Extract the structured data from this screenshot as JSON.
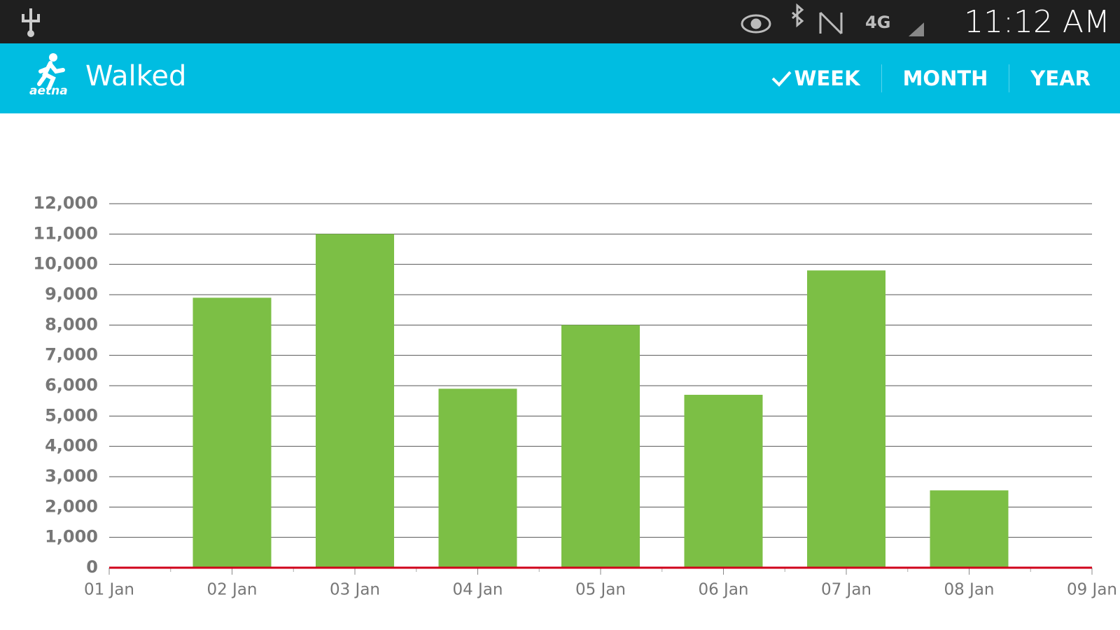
{
  "status_bar": {
    "time": "11:12 AM"
  },
  "app_bar": {
    "logo": "aetna",
    "title": "Walked",
    "tabs": [
      {
        "label": "WEEK",
        "selected": true
      },
      {
        "label": "MONTH",
        "selected": false
      },
      {
        "label": "YEAR",
        "selected": false
      }
    ]
  },
  "chart_data": {
    "type": "bar",
    "categories": [
      "01 Jan",
      "02 Jan",
      "03 Jan",
      "04 Jan",
      "05 Jan",
      "06 Jan",
      "07 Jan",
      "08 Jan",
      "09 Jan"
    ],
    "values": [
      null,
      8900,
      11000,
      5900,
      8000,
      5700,
      9800,
      2550,
      null
    ],
    "color": "#7cbf45",
    "ylim": [
      0,
      12000
    ],
    "yticks": [
      0,
      {
        "value": 1000,
        "label": "1,000"
      },
      {
        "value": 2000,
        "label": "2,000"
      },
      {
        "value": 3000,
        "label": "3,000"
      },
      {
        "value": 4000,
        "label": "4,000"
      },
      {
        "value": 5000,
        "label": "5,000"
      },
      {
        "value": 6000,
        "label": "6,000"
      },
      {
        "value": 7000,
        "label": "7,000"
      },
      {
        "value": 8000,
        "label": "8,000"
      },
      {
        "value": 9000,
        "label": "9,000"
      },
      {
        "value": 10000,
        "label": "10,000"
      },
      {
        "value": 11000,
        "label": "11,000"
      },
      {
        "value": 12000,
        "label": "12,000"
      }
    ],
    "grid": true,
    "baseline_color": "#d0021b"
  }
}
